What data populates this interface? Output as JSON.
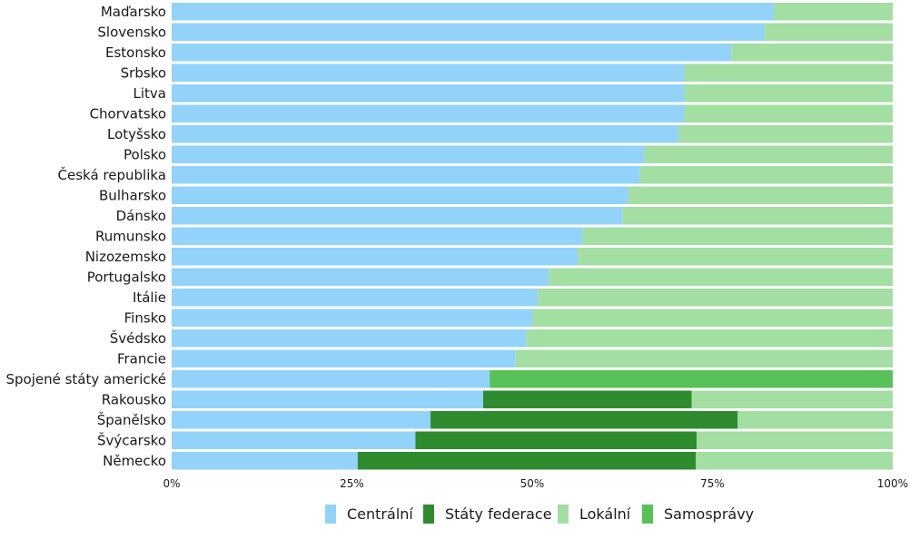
{
  "chart_data": {
    "type": "bar",
    "orientation": "horizontal",
    "stacked": "percent",
    "categories": [
      "Maďarsko",
      "Slovensko",
      "Estonsko",
      "Srbsko",
      "Litva",
      "Chorvatsko",
      "Lotyšsko",
      "Polsko",
      "Česká republika",
      "Bulharsko",
      "Dánsko",
      "Rumunsko",
      "Nizozemsko",
      "Portugalsko",
      "Itálie",
      "Finsko",
      "Švédsko",
      "Francie",
      "Spojené státy americké",
      "Rakousko",
      "Španělsko",
      "Švýcarsko",
      "Německo"
    ],
    "series": [
      {
        "name": "Centrální",
        "color": "#93d3fa",
        "values": [
          83.5,
          82.2,
          77.6,
          71.1,
          71.1,
          71.1,
          70.3,
          65.6,
          64.9,
          63.3,
          62.5,
          57.0,
          56.3,
          52.3,
          50.8,
          50.0,
          49.2,
          47.7,
          44.1,
          43.2,
          35.9,
          33.8,
          25.8
        ]
      },
      {
        "name": "Státy federace",
        "color": "#2e8b2e",
        "values": [
          0,
          0,
          0,
          0,
          0,
          0,
          0,
          0,
          0,
          0,
          0,
          0,
          0,
          0,
          0,
          0,
          0,
          0,
          0,
          28.9,
          42.6,
          39.0,
          46.9
        ]
      },
      {
        "name": "Lokální",
        "color": "#a3dea3",
        "values": [
          16.5,
          17.8,
          22.4,
          28.9,
          28.9,
          28.9,
          29.7,
          34.4,
          35.1,
          36.7,
          37.5,
          43.0,
          43.7,
          47.7,
          49.2,
          50.0,
          50.8,
          52.3,
          0,
          27.9,
          21.5,
          27.2,
          27.3
        ]
      },
      {
        "name": "Samosprávy",
        "color": "#58c258",
        "values": [
          0,
          0,
          0,
          0,
          0,
          0,
          0,
          0,
          0,
          0,
          0,
          0,
          0,
          0,
          0,
          0,
          0,
          0,
          55.9,
          0,
          0,
          0,
          0
        ]
      }
    ],
    "x_ticks": [
      "0%",
      "25%",
      "50%",
      "75%",
      "100%"
    ],
    "xlim": [
      0,
      100
    ],
    "legend_position": "bottom",
    "grid": false
  }
}
